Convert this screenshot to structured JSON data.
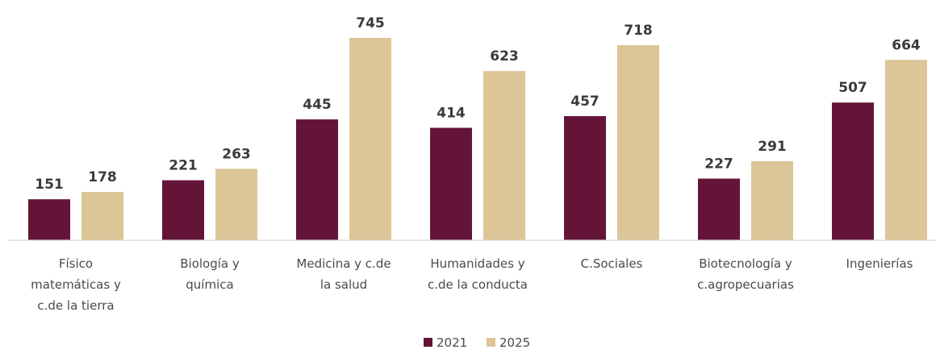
{
  "chart_data": {
    "type": "bar",
    "title": "",
    "xlabel": "",
    "ylabel": "",
    "ylim": [
      0,
      800
    ],
    "grid": false,
    "legend_position": "bottom",
    "categories": [
      [
        "Físico",
        "matemáticas y",
        "c.de la tierra"
      ],
      [
        "Biología y",
        "química"
      ],
      [
        "Medicina y c.de",
        "la salud"
      ],
      [
        "Humanidades y",
        "c.de la conducta"
      ],
      [
        "C.Sociales"
      ],
      [
        "Biotecnología y",
        "c.agropecuarias"
      ],
      [
        "Ingenierías"
      ]
    ],
    "series": [
      {
        "name": "2021",
        "color": "#641537",
        "values": [
          151,
          221,
          445,
          414,
          457,
          227,
          507
        ]
      },
      {
        "name": "2025",
        "color": "#dcc596",
        "values": [
          178,
          263,
          745,
          623,
          718,
          291,
          664
        ]
      }
    ]
  }
}
